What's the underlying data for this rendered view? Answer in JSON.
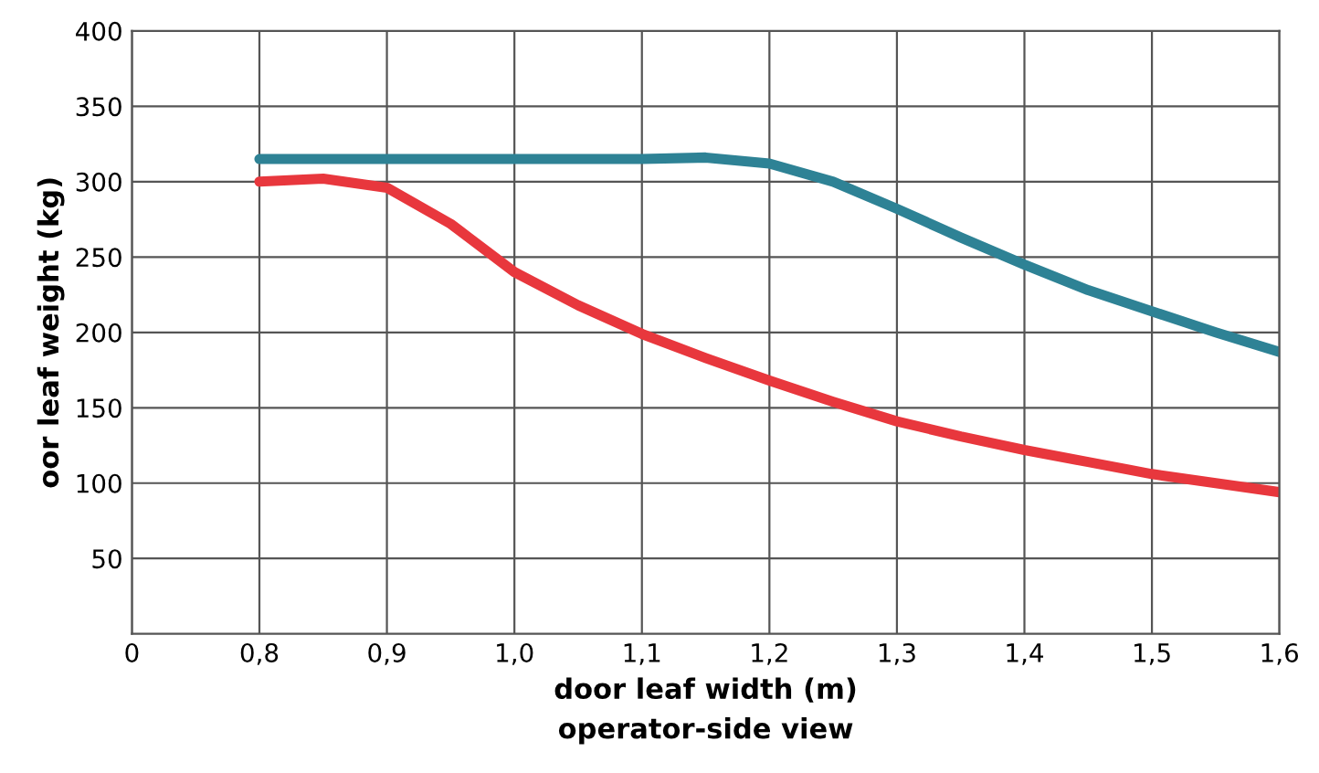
{
  "chart_data": {
    "type": "line",
    "xlabel": "door leaf width (m)\noperator-side view",
    "ylabel": "oor leaf weight (kg)",
    "categories": [
      "0",
      null,
      "0,8",
      null,
      "0,9",
      null,
      "1,0",
      null,
      "1,1",
      null,
      "1,2",
      null,
      "1,3",
      null,
      "1,4",
      null,
      "1,5",
      null,
      "1,6"
    ],
    "ylim": [
      0,
      400
    ],
    "yticks": [
      50,
      100,
      150,
      200,
      250,
      300,
      350,
      400
    ],
    "grid": true,
    "line_style": "solid",
    "series": [
      {
        "color": "#2e8295",
        "values": [
          null,
          null,
          315,
          315,
          315,
          315,
          315,
          315,
          315,
          316,
          312,
          300,
          282,
          263,
          245,
          228,
          214,
          200,
          187
        ]
      },
      {
        "color": "#e8373d",
        "values": [
          null,
          null,
          300,
          302,
          296,
          272,
          240,
          218,
          199,
          183,
          168,
          154,
          141,
          131,
          122,
          114,
          106,
          100,
          94
        ]
      }
    ]
  }
}
